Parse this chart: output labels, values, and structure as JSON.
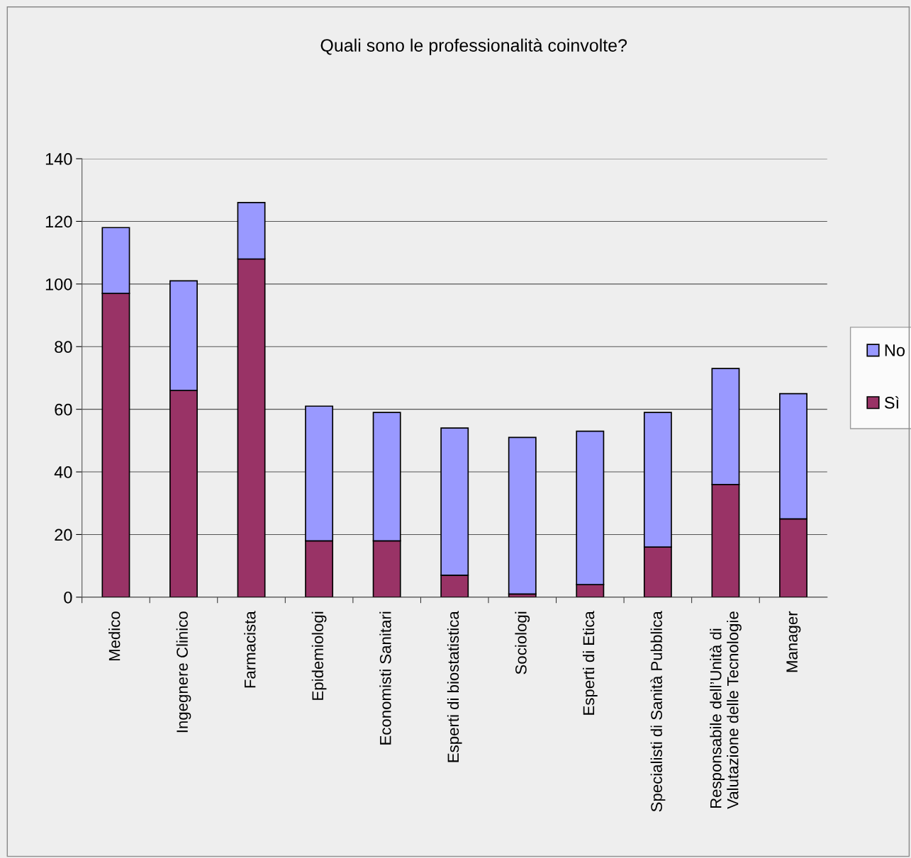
{
  "chart_data": {
    "type": "bar",
    "title": "Quali sono le professionalità coinvolte?",
    "categories": [
      "Medico",
      "Ingegnere Clinico",
      "Farmacista",
      "Epidemiologi",
      "Economisti Sanitari",
      "Esperti di biostatistica",
      "Sociologi",
      "Esperti di Etica",
      "Specialisti di Sanità Pubblica",
      "Responsabile dell’Unità di\nValutazione delle Tecnologie",
      "Manager"
    ],
    "series": [
      {
        "name": "Sì",
        "color": "#993366",
        "values": [
          97,
          66,
          108,
          18,
          18,
          7,
          1,
          4,
          16,
          36,
          25
        ]
      },
      {
        "name": "No",
        "color": "#9999ff",
        "values": [
          21,
          35,
          18,
          43,
          41,
          47,
          50,
          49,
          43,
          37,
          40
        ]
      }
    ],
    "stacked": true,
    "ylim": [
      0,
      140
    ],
    "yticks": [
      0,
      20,
      40,
      60,
      80,
      100,
      120,
      140
    ],
    "grid": "y",
    "legend": "right"
  }
}
